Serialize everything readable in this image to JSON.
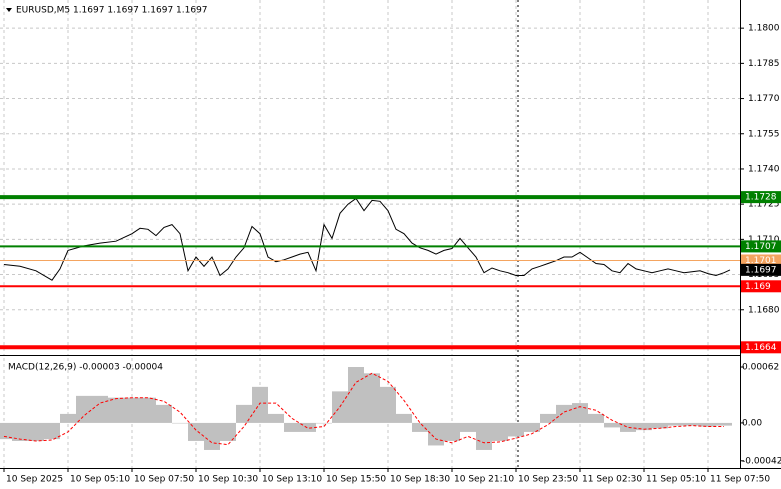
{
  "chart_data": [
    {
      "type": "line",
      "title": "EURUSD,M5  1.1697 1.1697 1.1697 1.1697",
      "x": [
        0,
        8,
        16,
        24,
        28,
        32,
        40,
        48,
        56,
        64,
        68,
        72,
        76,
        80,
        84,
        88,
        92,
        96,
        100,
        104,
        108,
        112,
        116,
        120,
        124,
        128,
        132,
        136,
        140,
        144,
        148,
        152,
        156,
        160,
        164,
        168,
        172,
        176,
        180,
        184,
        188,
        192,
        196,
        200,
        204,
        208,
        212,
        216,
        220,
        224,
        228,
        232,
        236,
        240,
        244,
        248,
        252,
        256,
        260,
        264,
        268,
        272,
        276,
        280,
        284,
        288,
        292,
        296,
        300,
        304,
        308,
        312,
        316,
        320,
        324,
        328,
        332,
        336,
        340,
        344,
        348,
        352,
        356,
        360,
        363
      ],
      "series": [
        {
          "color": "#000000",
          "values": [
            1.16993,
            1.16985,
            1.16966,
            1.16926,
            1.16974,
            1.17053,
            1.17072,
            1.17084,
            1.17092,
            1.17124,
            1.17147,
            1.17143,
            1.17116,
            1.17151,
            1.17163,
            1.17124,
            1.16966,
            1.17025,
            1.16985,
            1.17025,
            1.16946,
            1.16974,
            1.17025,
            1.17064,
            1.17155,
            1.17124,
            1.17025,
            1.17005,
            1.17013,
            1.17025,
            1.17037,
            1.17045,
            1.16966,
            1.17163,
            1.17104,
            1.17211,
            1.1725,
            1.17274,
            1.17222,
            1.17266,
            1.17262,
            1.17222,
            1.17143,
            1.17124,
            1.17084,
            1.17064,
            1.17053,
            1.17037,
            1.17053,
            1.17061,
            1.17104,
            1.17064,
            1.17025,
            1.16958,
            1.16978,
            1.16966,
            1.16958,
            1.16946,
            1.16946,
            1.16974,
            1.16985,
            1.16997,
            1.17009,
            1.17025,
            1.17025,
            1.17045,
            1.17021,
            1.16997,
            1.16993,
            1.16966,
            1.16958,
            1.16997,
            1.16974,
            1.16966,
            1.16958,
            1.16966,
            1.16974,
            1.16966,
            1.16958,
            1.16962,
            1.16966,
            1.16954,
            1.16946,
            1.16958,
            1.1697
          ]
        }
      ],
      "xlim": [
        -2,
        368
      ],
      "ylim": [
        1.1662,
        1.1812
      ],
      "yticks": [
        {
          "value": 1.18,
          "label": "1.1800"
        },
        {
          "value": 1.1785,
          "label": "1.1785"
        },
        {
          "value": 1.177,
          "label": "1.1770"
        },
        {
          "value": 1.1755,
          "label": "1.1755"
        },
        {
          "value": 1.174,
          "label": "1.1740"
        },
        {
          "value": 1.1725,
          "label": "1.1725"
        },
        {
          "value": 1.171,
          "label": "1.1710"
        },
        {
          "value": 1.1695,
          "label": "1.1695"
        },
        {
          "value": 1.168,
          "label": "1.1680"
        }
      ],
      "xticks": [
        {
          "value": 0,
          "label": "10 Sep 2025"
        },
        {
          "value": 32,
          "label": "10 Sep 05:10"
        },
        {
          "value": 64,
          "label": "10 Sep 07:50"
        },
        {
          "value": 96,
          "label": "10 Sep 10:30"
        },
        {
          "value": 128,
          "label": "10 Sep 13:10"
        },
        {
          "value": 160,
          "label": "10 Sep 15:50"
        },
        {
          "value": 192,
          "label": "10 Sep 18:30"
        },
        {
          "value": 224,
          "label": "10 Sep 21:10"
        },
        {
          "value": 256,
          "label": "10 Sep 23:50"
        },
        {
          "value": 288,
          "label": "11 Sep 02:30"
        },
        {
          "value": 320,
          "label": "11 Sep 05:10"
        },
        {
          "value": 352,
          "label": "11 Sep 07:50"
        }
      ],
      "grid": true,
      "levels": [
        {
          "value": 1.1728,
          "color": "#008000",
          "width": 4
        },
        {
          "value": 1.1707,
          "color": "#008000",
          "width": 2
        },
        {
          "value": 1.1701,
          "color": "#f4a460",
          "width": 1
        },
        {
          "value": 1.1697,
          "color": "#000000",
          "width": 0
        },
        {
          "value": 1.169,
          "color": "#ff0000",
          "width": 2
        },
        {
          "value": 1.1664,
          "color": "#ff0000",
          "width": 4
        }
      ]
    },
    {
      "type": "macd",
      "title": "MACD(12,26,9) -0.00003 -0.00004",
      "x": [
        0,
        8,
        16,
        24,
        32,
        40,
        48,
        56,
        64,
        72,
        80,
        88,
        96,
        104,
        112,
        120,
        128,
        136,
        144,
        152,
        160,
        168,
        176,
        184,
        192,
        200,
        208,
        216,
        224,
        232,
        240,
        248,
        256,
        264,
        272,
        280,
        288,
        296,
        304,
        312,
        320,
        328,
        336,
        344,
        352,
        360
      ],
      "series": [
        {
          "color": "#c0c0c0",
          "values": [
            -0.00018,
            -0.0002,
            -0.0002,
            -0.00018,
            0.0001,
            0.0003,
            0.0003,
            0.00028,
            0.00028,
            0.00028,
            0.0002,
            0.0,
            -0.0002,
            -0.0003,
            -0.0002,
            0.0002,
            0.0004,
            0.0001,
            -0.0001,
            -0.0001,
            0.0,
            0.00035,
            0.00062,
            0.00055,
            0.0004,
            0.0001,
            -0.0001,
            -0.00025,
            -0.0002,
            -0.0001,
            -0.0003,
            -0.0002,
            -0.00015,
            -0.0001,
            0.0001,
            0.0002,
            0.00022,
            0.0001,
            -5e-05,
            -0.0001,
            -8e-05,
            -6e-05,
            -3e-05,
            -3e-05,
            -4e-05,
            -3e-05
          ]
        },
        {
          "color": "#ff0000",
          "values": [
            -0.00015,
            -0.00018,
            -0.0002,
            -0.00019,
            -0.0001,
            8e-05,
            0.00022,
            0.00027,
            0.00028,
            0.00028,
            0.00024,
            0.00012,
            -8e-05,
            -0.00022,
            -0.00024,
            -4e-05,
            0.00022,
            0.00022,
            5e-05,
            -6e-05,
            -4e-05,
            0.00018,
            0.00045,
            0.00055,
            0.00046,
            0.00025,
            0.0,
            -0.00018,
            -0.00022,
            -0.00015,
            -0.00022,
            -0.00021,
            -0.00017,
            -0.00012,
            -2e-05,
            0.00012,
            0.00018,
            0.00014,
            3e-05,
            -5e-05,
            -7e-05,
            -6e-05,
            -4e-05,
            -3e-05,
            -4e-05,
            -4e-05
          ]
        }
      ],
      "ylim": [
        -0.0005,
        0.00072
      ],
      "yticks": [
        {
          "value": 0.00062,
          "label": "0.00062"
        },
        {
          "value": 0,
          "label": "0.00"
        },
        {
          "value": -0.00042,
          "label": "-0.00042"
        }
      ]
    }
  ]
}
